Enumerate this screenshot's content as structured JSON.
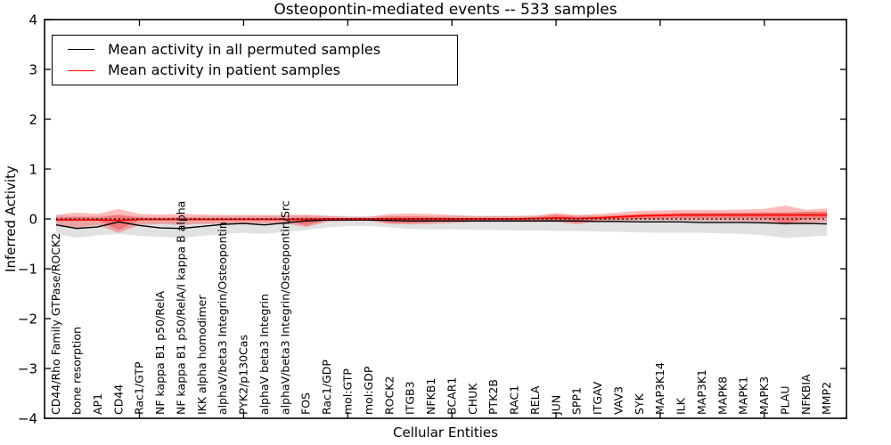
{
  "figure": {
    "title": "Osteopontin-mediated events -- 533 samples",
    "xlabel": "Cellular Entities",
    "ylabel": "Inferred Activity"
  },
  "legend": {
    "items": [
      {
        "label": "Mean activity in all permuted samples",
        "color": "#000000"
      },
      {
        "label": "Mean activity in patient samples",
        "color": "#ff0000"
      }
    ]
  },
  "chart_data": {
    "type": "line",
    "title": "Osteopontin-mediated events -- 533 samples",
    "xlabel": "Cellular Entities",
    "ylabel": "Inferred Activity",
    "ylim": [
      -4,
      4
    ],
    "yticks": [
      -4,
      -3,
      -2,
      -1,
      0,
      1,
      2,
      3,
      4
    ],
    "xtick_every": 5,
    "grid": false,
    "legend_position": "upper left",
    "categories": [
      "CD44/Rho Family GTPase/ROCK2",
      "bone resorption",
      "AP1",
      "CD44",
      "Rac1/GTP",
      "NF kappa B1 p50/RelA",
      "NF kappa B1 p50/RelA/I kappa B alpha",
      "IKK alpha homodimer",
      "alphaV/beta3 Integrin/Osteopontin",
      "PYK2/p130Cas",
      "alphaV beta3 Integrin",
      "alphaV/beta3 Integrin/Osteopontin/Src",
      "FOS",
      "Rac1/GDP",
      "mol:GTP",
      "mol:GDP",
      "ROCK2",
      "ITGB3",
      "NFKB1",
      "BCAR1",
      "CHUK",
      "PTK2B",
      "RAC1",
      "RELA",
      "JUN",
      "SPP1",
      "ITGAV",
      "VAV3",
      "SYK",
      "MAP3K14",
      "ILK",
      "MAP3K1",
      "MAPK8",
      "MAPK1",
      "MAPK3",
      "PLAU",
      "NFKBIA",
      "MMP2"
    ],
    "series": [
      {
        "name": "Mean activity in all permuted samples",
        "color": "#000000",
        "values": [
          -0.12,
          -0.19,
          -0.16,
          -0.06,
          -0.13,
          -0.18,
          -0.19,
          -0.15,
          -0.11,
          -0.09,
          -0.12,
          -0.08,
          -0.04,
          -0.02,
          -0.02,
          -0.02,
          -0.03,
          -0.04,
          -0.04,
          -0.04,
          -0.04,
          -0.04,
          -0.04,
          -0.04,
          -0.04,
          -0.04,
          -0.05,
          -0.05,
          -0.06,
          -0.06,
          -0.06,
          -0.07,
          -0.07,
          -0.07,
          -0.08,
          -0.09,
          -0.09,
          -0.1
        ]
      },
      {
        "name": "Mean activity in patient samples",
        "color": "#ff0000",
        "values": [
          -0.02,
          -0.02,
          -0.02,
          -0.03,
          -0.01,
          -0.01,
          -0.01,
          -0.01,
          -0.01,
          -0.01,
          -0.01,
          -0.01,
          -0.01,
          0,
          0,
          0,
          0,
          0,
          0,
          0,
          0,
          0,
          0,
          0.01,
          0.02,
          0.01,
          0.02,
          0.04,
          0.06,
          0.07,
          0.08,
          0.08,
          0.08,
          0.08,
          0.08,
          0.08,
          0.08,
          0.08
        ]
      }
    ],
    "bands": [
      {
        "name": "permuted-range",
        "color": "rgba(120,120,120,0.22)",
        "low": [
          -0.3,
          -0.38,
          -0.33,
          -0.3,
          -0.34,
          -0.36,
          -0.38,
          -0.34,
          -0.3,
          -0.28,
          -0.3,
          -0.26,
          -0.22,
          -0.17,
          -0.14,
          -0.14,
          -0.17,
          -0.2,
          -0.21,
          -0.21,
          -0.22,
          -0.22,
          -0.23,
          -0.23,
          -0.24,
          -0.24,
          -0.25,
          -0.26,
          -0.27,
          -0.28,
          -0.28,
          -0.28,
          -0.29,
          -0.3,
          -0.33,
          -0.38,
          -0.36,
          -0.33
        ],
        "high": [
          0.08,
          0.05,
          0.06,
          0.08,
          0.05,
          0.04,
          0.04,
          0.05,
          0.06,
          0.06,
          0.06,
          0.06,
          0.07,
          0.07,
          0.06,
          0.06,
          0.06,
          0.06,
          0.06,
          0.06,
          0.06,
          0.06,
          0.06,
          0.06,
          0.07,
          0.07,
          0.07,
          0.08,
          0.09,
          0.1,
          0.11,
          0.11,
          0.12,
          0.12,
          0.13,
          0.14,
          0.14,
          0.15
        ]
      },
      {
        "name": "patient-range",
        "color": "rgba(255,0,0,0.27)",
        "low": [
          -0.12,
          -0.18,
          -0.12,
          -0.28,
          -0.12,
          -0.1,
          -0.12,
          -0.1,
          -0.1,
          -0.1,
          -0.09,
          -0.09,
          -0.16,
          -0.06,
          -0.04,
          -0.04,
          -0.1,
          -0.11,
          -0.1,
          -0.08,
          -0.06,
          -0.06,
          -0.06,
          -0.06,
          -0.06,
          -0.11,
          -0.05,
          -0.04,
          -0.03,
          -0.03,
          -0.03,
          -0.04,
          -0.04,
          -0.05,
          -0.06,
          -0.12,
          -0.08,
          -0.06
        ],
        "high": [
          0.08,
          0.13,
          0.1,
          0.2,
          0.1,
          0.09,
          0.1,
          0.09,
          0.08,
          0.08,
          0.08,
          0.08,
          0.09,
          0.06,
          0.04,
          0.04,
          0.1,
          0.11,
          0.1,
          0.08,
          0.06,
          0.06,
          0.06,
          0.07,
          0.12,
          0.08,
          0.1,
          0.13,
          0.16,
          0.17,
          0.18,
          0.18,
          0.18,
          0.19,
          0.2,
          0.27,
          0.18,
          0.21
        ]
      },
      {
        "name": "patient-inner-range",
        "color": "rgba(255,0,0,0.27)",
        "low": [
          -0.03,
          -0.04,
          -0.03,
          -0.22,
          -0.03,
          -0.02,
          -0.03,
          -0.02,
          -0.02,
          -0.02,
          -0.02,
          -0.02,
          -0.13,
          -0.02,
          -0.01,
          -0.01,
          -0.08,
          -0.08,
          -0.06,
          -0.03,
          -0.02,
          -0.02,
          -0.02,
          -0.02,
          -0.03,
          -0.08,
          -0.02,
          -0.01,
          0,
          0.01,
          0.02,
          0.02,
          0.02,
          0.02,
          0.02,
          -0.1,
          0,
          0.02
        ],
        "high": [
          0.03,
          0.04,
          0.03,
          0.08,
          0.03,
          0.02,
          0.03,
          0.02,
          0.02,
          0.02,
          0.02,
          0.02,
          0.04,
          0.02,
          0.01,
          0.01,
          0.05,
          0.05,
          0.04,
          0.03,
          0.02,
          0.02,
          0.02,
          0.03,
          0.09,
          0.04,
          0.05,
          0.07,
          0.1,
          0.11,
          0.12,
          0.12,
          0.12,
          0.12,
          0.13,
          0.12,
          0.14,
          0.14
        ]
      }
    ],
    "zero_line": {
      "style": "dotted",
      "color": "#000000",
      "value": 0
    }
  }
}
